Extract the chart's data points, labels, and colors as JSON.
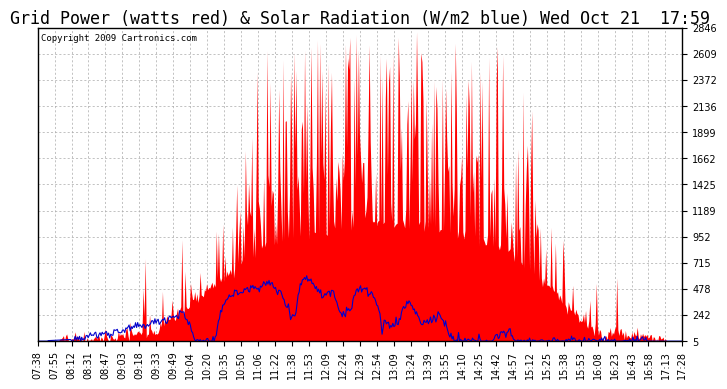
{
  "title": "Grid Power (watts red) & Solar Radiation (W/m2 blue) Wed Oct 21  17:59",
  "copyright": "Copyright 2009 Cartronics.com",
  "yticks": [
    5.0,
    241.7,
    478.5,
    715.2,
    952.0,
    1188.7,
    1425.4,
    1662.2,
    1898.9,
    2135.6,
    2372.4,
    2609.1,
    2845.9
  ],
  "ymin": 5.0,
  "ymax": 2845.9,
  "xtick_labels": [
    "07:38",
    "07:55",
    "08:12",
    "08:31",
    "08:47",
    "09:03",
    "09:18",
    "09:33",
    "09:49",
    "10:04",
    "10:20",
    "10:35",
    "10:50",
    "11:06",
    "11:22",
    "11:38",
    "11:53",
    "12:09",
    "12:24",
    "12:39",
    "12:54",
    "13:09",
    "13:24",
    "13:39",
    "13:55",
    "14:10",
    "14:25",
    "14:42",
    "14:57",
    "15:12",
    "15:25",
    "15:38",
    "15:53",
    "16:08",
    "16:23",
    "16:43",
    "16:58",
    "17:13",
    "17:28"
  ],
  "bg_color": "#ffffff",
  "plot_bg_color": "#ffffff",
  "grid_color": "#aaaaaa",
  "red_color": "#ff0000",
  "blue_color": "#0000cc",
  "title_fontsize": 12,
  "tick_fontsize": 7,
  "copyright_fontsize": 6.5
}
